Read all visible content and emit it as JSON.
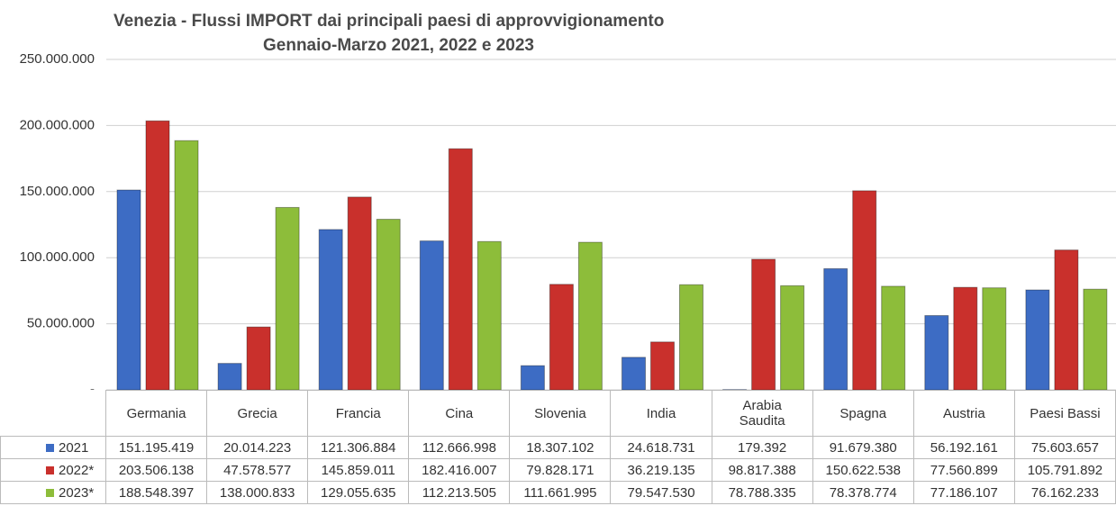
{
  "chart_data": {
    "type": "bar",
    "title": "Venezia -  Flussi  IMPORT dai principali  paesi di approvvigionamento",
    "subtitle": "Gennaio-Marzo 2021, 2022 e 2023",
    "categories": [
      "Germania",
      "Grecia",
      "Francia",
      "Cina",
      "Slovenia",
      "India",
      "Arabia Saudita",
      "Spagna",
      "Austria",
      "Paesi Bassi"
    ],
    "series": [
      {
        "name": "2021",
        "color": "#3d6cc4",
        "values": [
          151195419,
          20014223,
          121306884,
          112666998,
          18307102,
          24618731,
          179392,
          91679380,
          56192161,
          75603657
        ],
        "value_labels": [
          "151.195.419",
          "20.014.223",
          "121.306.884",
          "112.666.998",
          "18.307.102",
          "24.618.731",
          "179.392",
          "91.679.380",
          "56.192.161",
          "75.603.657"
        ]
      },
      {
        "name": "2022*",
        "color": "#c9302c",
        "values": [
          203506138,
          47578577,
          145859011,
          182416007,
          79828171,
          36219135,
          98817388,
          150622538,
          77560899,
          105791892
        ],
        "value_labels": [
          "203.506.138",
          "47.578.577",
          "145.859.011",
          "182.416.007",
          "79.828.171",
          "36.219.135",
          "98.817.388",
          "150.622.538",
          "77.560.899",
          "105.791.892"
        ]
      },
      {
        "name": "2023*",
        "color": "#8dbd3a",
        "values": [
          188548397,
          138000833,
          129055635,
          112213505,
          111661995,
          79547530,
          78788335,
          78378774,
          77186107,
          76162233
        ],
        "value_labels": [
          "188.548.397",
          "138.000.833",
          "129.055.635",
          "112.213.505",
          "111.661.995",
          "79.547.530",
          "78.788.335",
          "78.378.774",
          "77.186.107",
          "76.162.233"
        ]
      }
    ],
    "ylim": [
      0,
      250000000
    ],
    "yticks": [
      {
        "value": 0,
        "label": "-"
      },
      {
        "value": 50000000,
        "label": "50.000.000"
      },
      {
        "value": 100000000,
        "label": "100.000.000"
      },
      {
        "value": 150000000,
        "label": "150.000.000"
      },
      {
        "value": 200000000,
        "label": "200.000.000"
      },
      {
        "value": 250000000,
        "label": "250.000.000"
      }
    ],
    "grid": true
  }
}
